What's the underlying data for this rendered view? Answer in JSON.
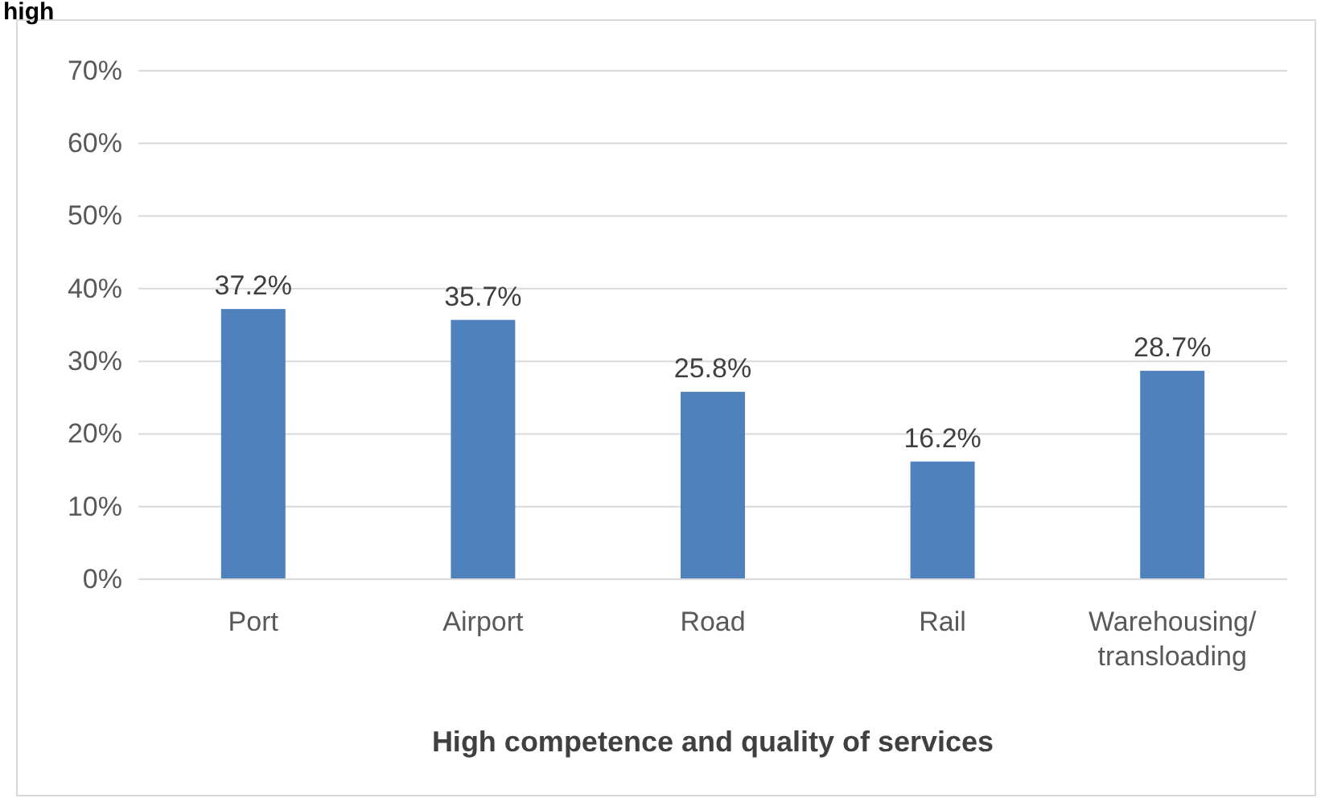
{
  "chart_data": {
    "type": "bar",
    "xlabel": "High competence and quality of services",
    "annotations": [
      "high"
    ],
    "categories": [
      "Port",
      "Airport",
      "Road",
      "Rail",
      "Warehousing/ transloading"
    ],
    "values": [
      37.2,
      35.7,
      25.8,
      16.2,
      28.7
    ],
    "color": "#4f81bd",
    "ylim": [
      0,
      70
    ],
    "yticks": [
      {
        "value": 0,
        "label": "0%"
      },
      {
        "value": 10,
        "label": "10%"
      },
      {
        "value": 20,
        "label": "20%"
      },
      {
        "value": 30,
        "label": "30%"
      },
      {
        "value": 40,
        "label": "40%"
      },
      {
        "value": 50,
        "label": "50%"
      },
      {
        "value": 60,
        "label": "60%"
      },
      {
        "value": 70,
        "label": "70%"
      }
    ],
    "value_labels": [
      "37.2%",
      "35.7%",
      "25.8%",
      "16.2%",
      "28.7%"
    ],
    "grid": "y"
  }
}
